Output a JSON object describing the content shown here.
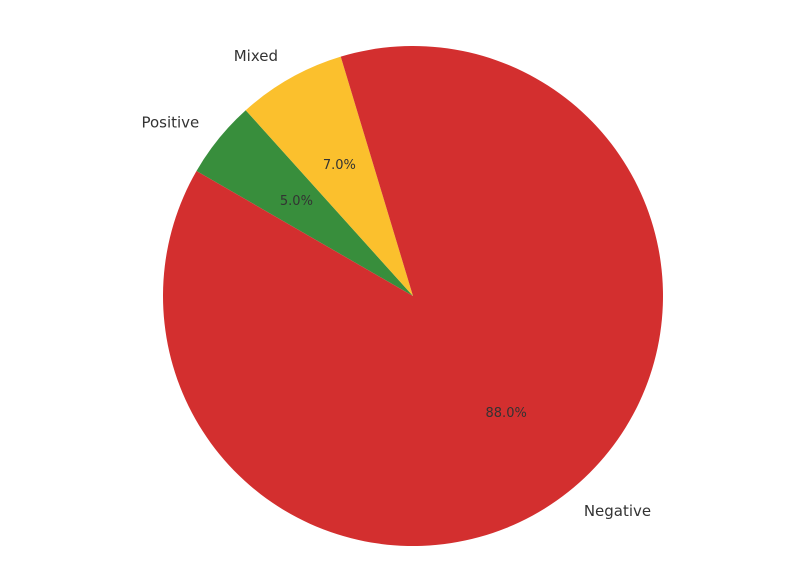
{
  "chart_data": {
    "type": "pie",
    "categories": [
      "Positive",
      "Mixed",
      "Negative"
    ],
    "values": [
      5,
      7,
      88
    ],
    "value_labels": [
      "5.0%",
      "7.0%",
      "88.0%"
    ],
    "colors": [
      "#388e3c",
      "#fbc02d",
      "#d32f2f"
    ],
    "start_angle": 150,
    "direction": "clockwise"
  }
}
